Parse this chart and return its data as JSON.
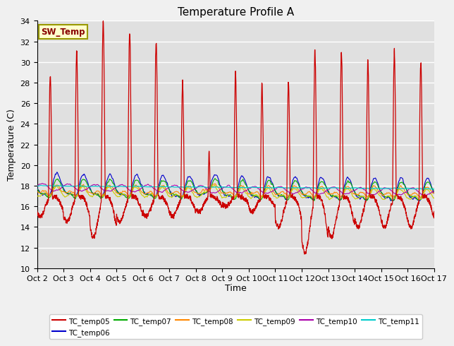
{
  "title": "Temperature Profile A",
  "xlabel": "Time",
  "ylabel": "Temperature (C)",
  "ylim": [
    10,
    34
  ],
  "xlim": [
    0,
    360
  ],
  "x_tick_labels": [
    "Oct 2",
    "Oct 3",
    "Oct 4",
    "Oct 5",
    "Oct 6",
    "Oct 7",
    "Oct 8",
    "Oct 9",
    "Oct 10",
    "Oct 11",
    "Oct 12",
    "Oct 13",
    "Oct 14",
    "Oct 15",
    "Oct 16",
    "Oct 17"
  ],
  "x_tick_positions": [
    0,
    24,
    48,
    72,
    96,
    120,
    144,
    168,
    192,
    216,
    240,
    264,
    288,
    312,
    336,
    360
  ],
  "y_tick_labels": [
    "10",
    "12",
    "14",
    "16",
    "18",
    "20",
    "22",
    "24",
    "26",
    "28",
    "30",
    "32",
    "34"
  ],
  "y_tick_values": [
    10,
    12,
    14,
    16,
    18,
    20,
    22,
    24,
    26,
    28,
    30,
    32,
    34
  ],
  "sw_temp_label": "SW_Temp",
  "legend_entries": [
    "TC_temp05",
    "TC_temp06",
    "TC_temp07",
    "TC_temp08",
    "TC_temp09",
    "TC_temp10",
    "TC_temp11"
  ],
  "line_colors": [
    "#cc0000",
    "#0000cc",
    "#00aa00",
    "#ff8800",
    "#cccc00",
    "#aa00aa",
    "#00cccc"
  ],
  "bg_color": "#e0e0e0",
  "fig_bg_color": "#f0f0f0",
  "title_fontsize": 11,
  "axis_label_fontsize": 9,
  "tick_fontsize": 8
}
